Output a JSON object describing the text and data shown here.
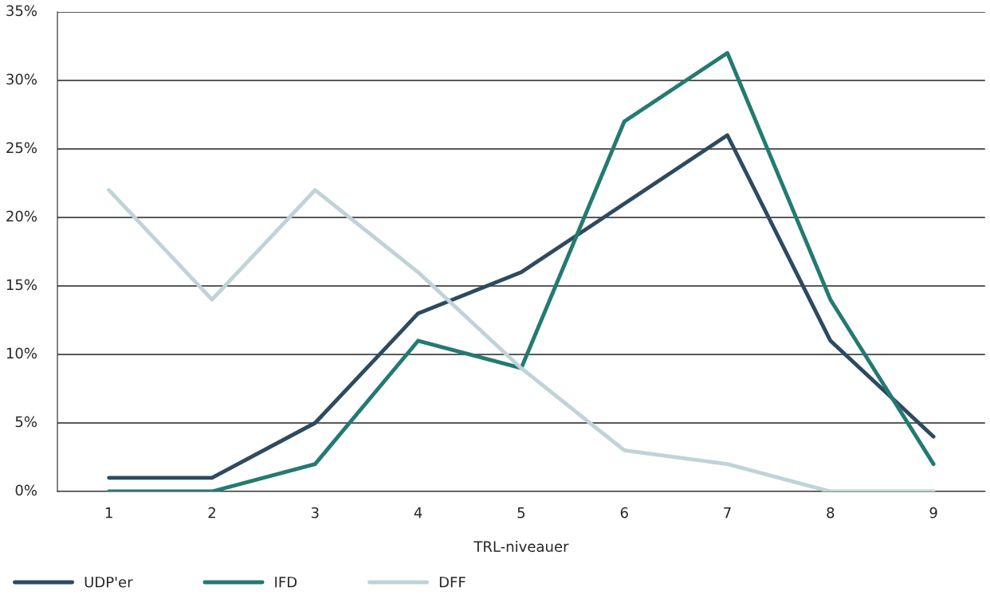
{
  "chart_data": {
    "type": "line",
    "xlabel": "TRL-niveauer",
    "categories": [
      "1",
      "2",
      "3",
      "4",
      "5",
      "6",
      "7",
      "8",
      "9"
    ],
    "series": [
      {
        "name": "UDP'er",
        "color": "#2e4a5f",
        "values": [
          1,
          1,
          5,
          13,
          16,
          21,
          26,
          11,
          4
        ]
      },
      {
        "name": "IFD",
        "color": "#237a72",
        "values": [
          0,
          0,
          2,
          11,
          9,
          27,
          32,
          14,
          2
        ]
      },
      {
        "name": "DFF",
        "color": "#bfd3d9",
        "values": [
          22,
          14,
          22,
          16,
          9,
          3,
          2,
          0,
          0
        ]
      }
    ],
    "ylim": [
      0,
      35
    ],
    "yticks": [
      {
        "value": 0,
        "label": "0%"
      },
      {
        "value": 5,
        "label": "5%"
      },
      {
        "value": 10,
        "label": "10%"
      },
      {
        "value": 15,
        "label": "15%"
      },
      {
        "value": 20,
        "label": "20%"
      },
      {
        "value": 25,
        "label": "25%"
      },
      {
        "value": 30,
        "label": "30%"
      },
      {
        "value": 35,
        "label": "35%"
      }
    ],
    "grid": "y",
    "legend": "bottom",
    "marker": "none",
    "line_style": "solid"
  }
}
